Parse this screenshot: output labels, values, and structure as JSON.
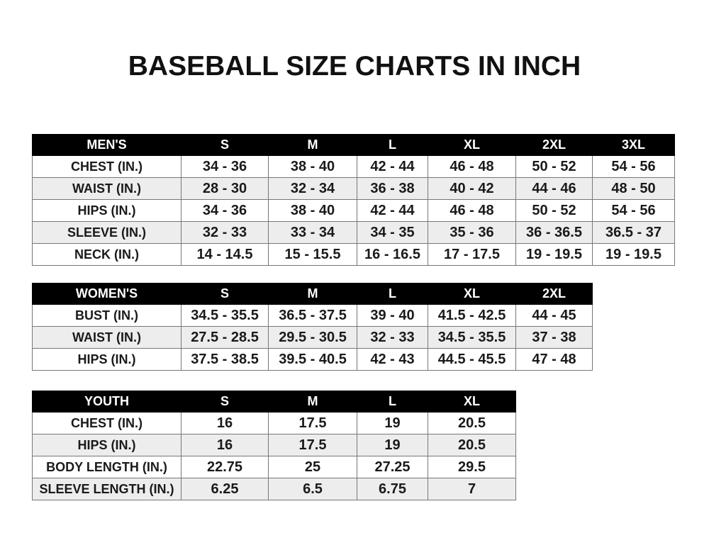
{
  "title": "BASEBALL SIZE CHARTS IN INCH",
  "mens": {
    "header": [
      "MEN'S",
      "S",
      "M",
      "L",
      "XL",
      "2XL",
      "3XL"
    ],
    "rows": [
      [
        "CHEST (IN.)",
        "34 - 36",
        "38 - 40",
        "42 - 44",
        "46 - 48",
        "50 - 52",
        "54 - 56"
      ],
      [
        "WAIST (IN.)",
        "28 - 30",
        "32 - 34",
        "36 - 38",
        "40 - 42",
        "44 - 46",
        "48 - 50"
      ],
      [
        "HIPS (IN.)",
        "34 - 36",
        "38 - 40",
        "42 - 44",
        "46 - 48",
        "50 - 52",
        "54 - 56"
      ],
      [
        "SLEEVE (IN.)",
        "32 - 33",
        "33 - 34",
        "34 - 35",
        "35 - 36",
        "36 - 36.5",
        "36.5 - 37"
      ],
      [
        "NECK (IN.)",
        "14 - 14.5",
        "15 - 15.5",
        "16 - 16.5",
        "17 - 17.5",
        "19 - 19.5",
        "19 - 19.5"
      ]
    ]
  },
  "womens": {
    "header": [
      "WOMEN'S",
      "S",
      "M",
      "L",
      "XL",
      "2XL"
    ],
    "rows": [
      [
        "BUST (IN.)",
        "34.5 - 35.5",
        "36.5 - 37.5",
        "39 - 40",
        "41.5 - 42.5",
        "44 - 45"
      ],
      [
        "WAIST (IN.)",
        "27.5 - 28.5",
        "29.5 - 30.5",
        "32 - 33",
        "34.5 - 35.5",
        "37 - 38"
      ],
      [
        "HIPS (IN.)",
        "37.5 - 38.5",
        "39.5 - 40.5",
        "42 - 43",
        "44.5 - 45.5",
        "47 - 48"
      ]
    ]
  },
  "youth": {
    "header": [
      "YOUTH",
      "S",
      "M",
      "L",
      "XL"
    ],
    "rows": [
      [
        "CHEST (IN.)",
        "16",
        "17.5",
        "19",
        "20.5"
      ],
      [
        "HIPS (IN.)",
        "16",
        "17.5",
        "19",
        "20.5"
      ],
      [
        "BODY LENGTH (IN.)",
        "22.75",
        "25",
        "27.25",
        "29.5"
      ],
      [
        "SLEEVE LENGTH (IN.)",
        "6.25",
        "6.5",
        "6.75",
        "7"
      ]
    ]
  }
}
